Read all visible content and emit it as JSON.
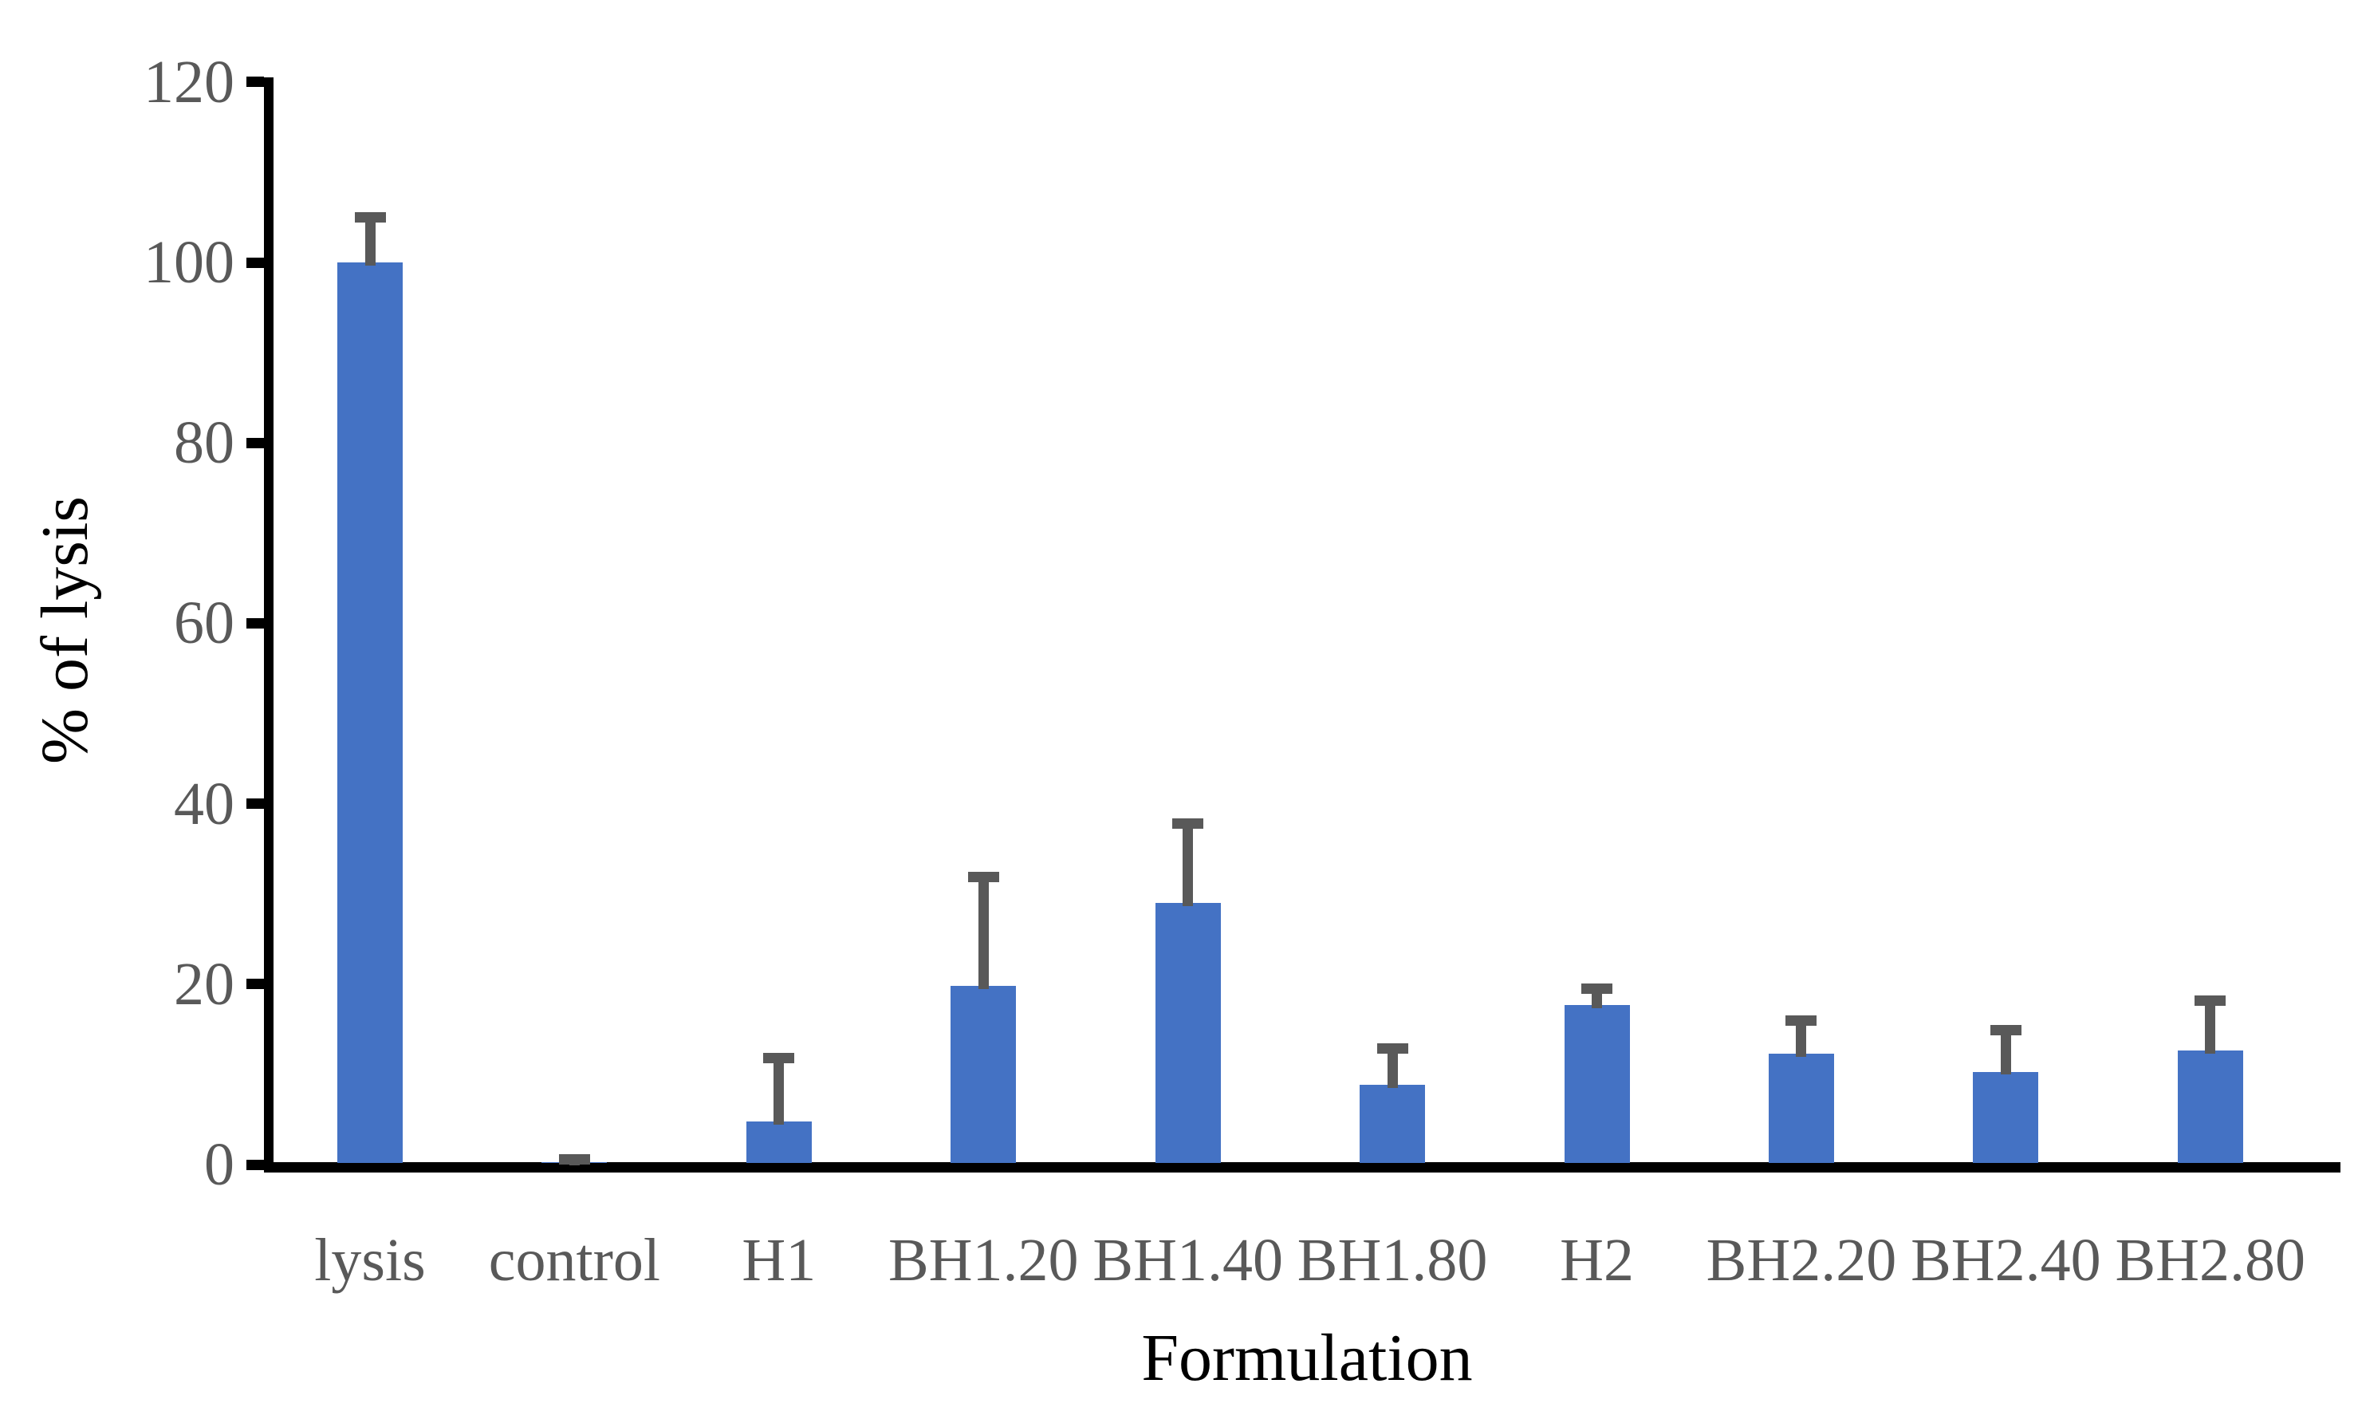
{
  "chart_data": {
    "type": "bar",
    "title": "",
    "xlabel": "Formulation",
    "ylabel": "% of lysis",
    "categories": [
      "lysis",
      "control",
      "H1",
      "BH1.20",
      "BH1.40",
      "BH1.80",
      "H2",
      "BH2.20",
      "BH2.40",
      "BH2.80"
    ],
    "values": [
      100,
      0.3,
      4.8,
      19.8,
      29.0,
      8.8,
      17.7,
      12.3,
      10.3,
      12.6
    ],
    "errors_plus": [
      5.0,
      0.3,
      7.0,
      12.1,
      8.8,
      4.1,
      1.8,
      3.7,
      4.6,
      5.6
    ],
    "error_style": "upper-whisker-with-cap",
    "ylim": [
      0,
      120
    ],
    "yticks": [
      "0",
      "20",
      "40",
      "60",
      "80",
      "100",
      "120"
    ],
    "grid": false,
    "legend": null,
    "colors": {
      "bar": "#4472C4",
      "error_bar": "#595959",
      "axis": "#000000",
      "tick_label": "#595959",
      "axis_title": "#000000",
      "background": "#FFFFFF"
    }
  }
}
